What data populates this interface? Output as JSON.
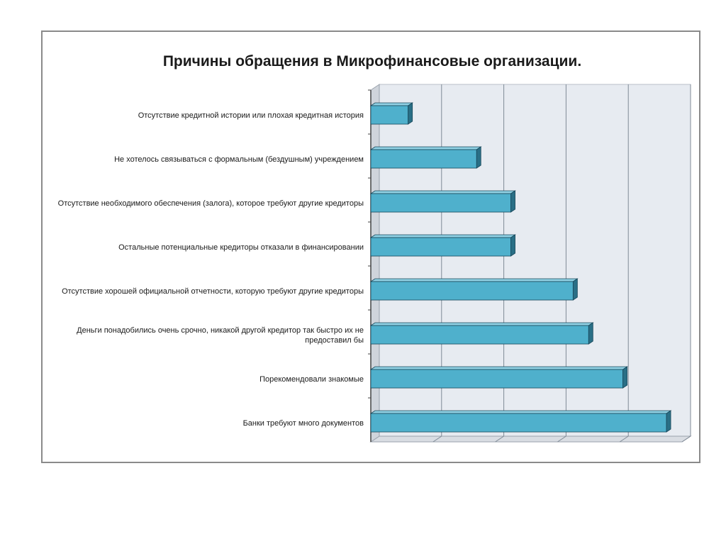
{
  "chart_data": {
    "type": "bar",
    "orientation": "horizontal",
    "style": "3d",
    "title": "Причины обращения в Микрофинансовые организации.",
    "categories": [
      [
        "Отсутствие кредитной истории или плохая кредитная история"
      ],
      [
        "Не хотелось связываться с формальным (бездушным) учреждением"
      ],
      [
        "Отсутствие необходимого обеспечения (залога), которое требуют другие кредиторы"
      ],
      [
        "Остальные потенциальные кредиторы отказали в финансировании"
      ],
      [
        "Отсутствие хорошей официальной отчетности, которую требуют другие кредиторы"
      ],
      [
        "Деньги понадобились очень срочно, никакой другой кредитор так быстро их не",
        "предоставил бы"
      ],
      [
        "Порекомендовали знакомые"
      ],
      [
        "Банки требуют много документов"
      ]
    ],
    "values": [
      6,
      17,
      22.5,
      22.5,
      32.5,
      35,
      40.5,
      47.5
    ],
    "xlim": [
      0,
      50
    ],
    "grid_step": 10,
    "grid": true,
    "axis_labels_shown": false,
    "colors": {
      "bar_front": "#4fb0cc",
      "bar_top": "#8fd0e3",
      "bar_side": "#2a6f86",
      "bar_edge": "#17475a",
      "wall": "#e7ebf1",
      "floor": "#d9dde3",
      "gridline": "#7f8a96"
    }
  }
}
